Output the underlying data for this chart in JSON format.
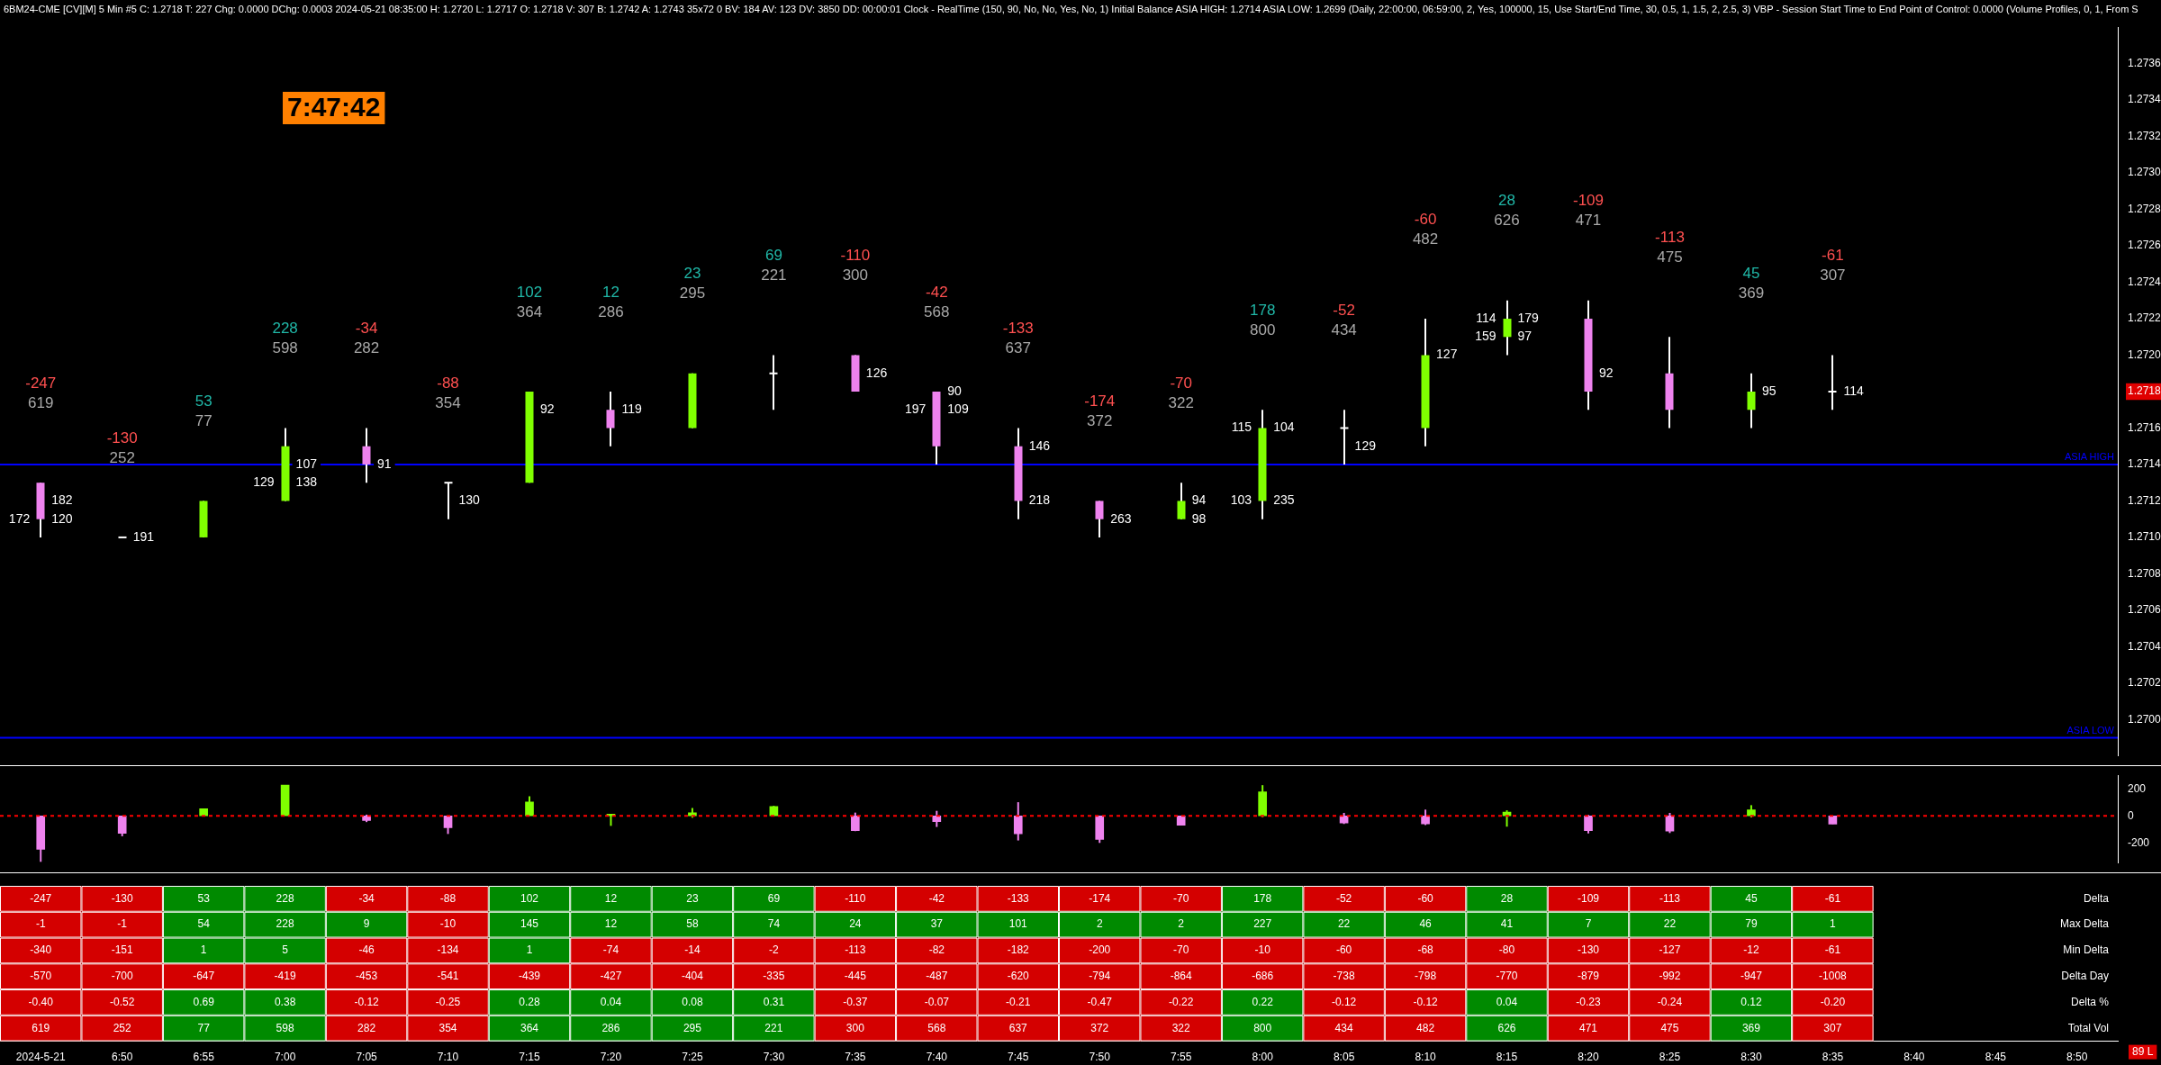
{
  "chart_data": [
    {
      "type": "candlestick",
      "title": "6BM24-CME [CV][M]  5 Min  #5 C: 1.2718 T: 227 Chg: 0.0000 DChg: 0.0003 2024-05-21 08:35:00 H: 1.2720 L: 1.2717 O: 1.2718 V: 307 B: 1.2742 A: 1.2743 35x72 0 BV: 184 AV: 123 DV: 3850 DD: 00:00:01 Clock - RealTime  (150, 90, No, No, Yes, No, 1)  Initial Balance  ASIA HIGH: 1.2714  ASIA LOW: 1.2699  (Daily, 22:00:00, 06:59:00, 2, Yes, 100000, 15, Use Start/End Time, 30, 0.5, 1, 1.5, 2, 2.5, 3)  VBP - Session Start Time to End  Point of Control: 0.0000  (Volume Profiles, 0, 1, From S",
      "categories": [
        "2024-5-21",
        "6:50",
        "6:55",
        "7:00",
        "7:05",
        "7:10",
        "7:15",
        "7:20",
        "7:25",
        "7:30",
        "7:35",
        "7:40",
        "7:45",
        "7:50",
        "7:55",
        "8:00",
        "8:05",
        "8:10",
        "8:15",
        "8:20",
        "8:25",
        "8:30",
        "8:35",
        "8:40",
        "8:45",
        "8:50"
      ],
      "ohlc": [
        [
          1.2713,
          1.2713,
          1.271,
          1.2711
        ],
        [
          1.271,
          1.271,
          1.271,
          1.271
        ],
        [
          1.271,
          1.2712,
          1.271,
          1.2712
        ],
        [
          1.2712,
          1.2716,
          1.2712,
          1.2715
        ],
        [
          1.2715,
          1.2716,
          1.2713,
          1.2714
        ],
        [
          1.2713,
          1.2713,
          1.2711,
          1.2713
        ],
        [
          1.2713,
          1.2718,
          1.2713,
          1.2718
        ],
        [
          1.2717,
          1.2718,
          1.2715,
          1.2716
        ],
        [
          1.2716,
          1.2719,
          1.2716,
          1.2719
        ],
        [
          1.2719,
          1.272,
          1.2717,
          1.2719
        ],
        [
          1.272,
          1.272,
          1.2718,
          1.2718
        ],
        [
          1.2718,
          1.2718,
          1.2714,
          1.2715
        ],
        [
          1.2715,
          1.2716,
          1.2711,
          1.2712
        ],
        [
          1.2712,
          1.2712,
          1.271,
          1.2711
        ],
        [
          1.2711,
          1.2713,
          1.2711,
          1.2712
        ],
        [
          1.2712,
          1.2717,
          1.2711,
          1.2716
        ],
        [
          1.2716,
          1.2717,
          1.2714,
          1.2716
        ],
        [
          1.2716,
          1.2722,
          1.2715,
          1.272
        ],
        [
          1.2721,
          1.2723,
          1.272,
          1.2722
        ],
        [
          1.2722,
          1.2723,
          1.2717,
          1.2718
        ],
        [
          1.2719,
          1.2721,
          1.2716,
          1.2717
        ],
        [
          1.2717,
          1.2719,
          1.2716,
          1.2718
        ],
        [
          1.2718,
          1.272,
          1.2717,
          1.2718
        ],
        null,
        null,
        null
      ],
      "ylim": [
        1.2698,
        1.2738
      ],
      "yticks": [
        {
          "value": 1.27,
          "label": "1.2700"
        },
        1.2702,
        1.2704,
        1.2706,
        1.2708,
        {
          "value": 1.271,
          "label": "1.2710"
        },
        1.2712,
        1.2714,
        1.2716,
        1.2718,
        {
          "value": 1.272,
          "label": "1.2720"
        },
        1.2722,
        1.2724,
        1.2726,
        1.2728,
        {
          "value": 1.273,
          "label": "1.2730"
        },
        1.2732,
        1.2734,
        1.2736
      ],
      "tick_labels": "y",
      "ref_lines": [
        {
          "axis": "y",
          "value": 1.2714,
          "label": "ASIA HIGH",
          "color": "#0000ff"
        },
        {
          "axis": "y",
          "value": 1.2699,
          "label": "ASIA LOW",
          "color": "#0000ff"
        }
      ],
      "annotations": [
        "7:47:42",
        "-247",
        "619",
        "-130",
        "252",
        "53",
        "77",
        "228",
        "598",
        "-34",
        "282",
        "-88",
        "354",
        "102",
        "364",
        "12",
        "286",
        "23",
        "295",
        "69",
        "221",
        "-110",
        "300",
        "-42",
        "568",
        "-133",
        "637",
        "-174",
        "372",
        "-70",
        "322",
        "178",
        "800",
        "-52",
        "434",
        "-60",
        "482",
        "28",
        "626",
        "-109",
        "471",
        "-113",
        "475",
        "45",
        "369",
        "-61",
        "307",
        {
          "text": "182",
          "x": "2024-5-21",
          "y": 1.2712
        },
        {
          "text": "172",
          "x": "2024-5-21",
          "y": 1.2711
        },
        {
          "text": "120",
          "x": "2024-5-21",
          "y": 1.2711
        },
        {
          "text": "191",
          "x": "6:50",
          "y": 1.271
        },
        {
          "text": "107",
          "x": "7:00",
          "y": 1.2714
        },
        {
          "text": "129",
          "x": "7:00",
          "y": 1.2713
        },
        {
          "text": "138",
          "x": "7:00",
          "y": 1.2713
        },
        {
          "text": "91",
          "x": "7:05",
          "y": 1.2714
        },
        {
          "text": "130",
          "x": "7:10",
          "y": 1.2712
        },
        {
          "text": "92",
          "x": "7:15",
          "y": 1.2717
        },
        {
          "text": "119",
          "x": "7:20",
          "y": 1.2717
        },
        {
          "text": "126",
          "x": "7:35",
          "y": 1.2719
        },
        {
          "text": "90",
          "x": "7:40",
          "y": 1.2718
        },
        {
          "text": "197",
          "x": "7:40",
          "y": 1.2717
        },
        {
          "text": "109",
          "x": "7:40",
          "y": 1.2717
        },
        {
          "text": "146",
          "x": "7:45",
          "y": 1.2715
        },
        {
          "text": "218",
          "x": "7:45",
          "y": 1.2712
        },
        {
          "text": "263",
          "x": "7:50",
          "y": 1.2711
        },
        {
          "text": "94",
          "x": "7:55",
          "y": 1.2712
        },
        {
          "text": "98",
          "x": "7:55",
          "y": 1.2711
        },
        {
          "text": "115",
          "x": "8:00",
          "y": 1.2716
        },
        {
          "text": "104",
          "x": "8:00",
          "y": 1.2716
        },
        {
          "text": "103",
          "x": "8:00",
          "y": 1.2712
        },
        {
          "text": "235",
          "x": "8:00",
          "y": 1.2712
        },
        {
          "text": "129",
          "x": "8:05",
          "y": 1.2715
        },
        {
          "text": "127",
          "x": "8:10",
          "y": 1.272
        },
        {
          "text": "114",
          "x": "8:15",
          "y": 1.2722
        },
        {
          "text": "179",
          "x": "8:15",
          "y": 1.2722
        },
        {
          "text": "159",
          "x": "8:15",
          "y": 1.2721
        },
        {
          "text": "97",
          "x": "8:15",
          "y": 1.2721
        },
        {
          "text": "92",
          "x": "8:20",
          "y": 1.2719
        },
        {
          "text": "95",
          "x": "8:30",
          "y": 1.2718
        },
        {
          "text": "114",
          "x": "8:35",
          "y": 1.2718
        }
      ]
    },
    {
      "type": "bar",
      "categories": [
        "2024-5-21",
        "6:50",
        "6:55",
        "7:00",
        "7:05",
        "7:10",
        "7:15",
        "7:20",
        "7:25",
        "7:30",
        "7:35",
        "7:40",
        "7:45",
        "7:50",
        "7:55",
        "8:00",
        "8:05",
        "8:10",
        "8:15",
        "8:20",
        "8:25",
        "8:30",
        "8:35",
        "8:40",
        "8:45",
        "8:50"
      ],
      "values": [
        -247,
        -130,
        53,
        228,
        -34,
        -88,
        102,
        12,
        23,
        69,
        -110,
        -42,
        -133,
        -174,
        -70,
        178,
        -52,
        -60,
        28,
        -109,
        -113,
        45,
        -61,
        null,
        null,
        null
      ],
      "errors": [
        [
          -340,
          -1
        ],
        [
          -151,
          -1
        ],
        [
          1,
          54
        ],
        [
          5,
          228
        ],
        [
          -46,
          9
        ],
        [
          -134,
          -10
        ],
        [
          1,
          145
        ],
        [
          -74,
          12
        ],
        [
          -14,
          58
        ],
        [
          -2,
          74
        ],
        [
          -113,
          24
        ],
        [
          -82,
          37
        ],
        [
          -182,
          101
        ],
        [
          -200,
          2
        ],
        [
          -70,
          2
        ],
        [
          -10,
          227
        ],
        [
          -60,
          22
        ],
        [
          -68,
          46
        ],
        [
          -80,
          41
        ],
        [
          -130,
          7
        ],
        [
          -127,
          22
        ],
        [
          -12,
          79
        ],
        [
          -61,
          1
        ],
        null,
        null,
        null
      ],
      "colors": [
        "#ee82ee",
        "#ee82ee",
        "#80ff00",
        "#80ff00",
        "#ee82ee",
        "#ee82ee",
        "#80ff00",
        "#80ff00",
        "#80ff00",
        "#80ff00",
        "#ee82ee",
        "#ee82ee",
        "#ee82ee",
        "#ee82ee",
        "#ee82ee",
        "#80ff00",
        "#ee82ee",
        "#ee82ee",
        "#80ff00",
        "#ee82ee",
        "#ee82ee",
        "#80ff00",
        "#ee82ee",
        "#80ff00",
        "#80ff00",
        "#80ff00"
      ],
      "ylim": [
        -350,
        300
      ],
      "yticks": [
        -200,
        0,
        200
      ],
      "tick_labels": "y",
      "ref_lines": [
        {
          "axis": "y",
          "value": 0,
          "color": "#ff0000",
          "line_style": "dashed"
        }
      ]
    },
    {
      "type": "heatmap",
      "categories": [
        "2024-5-21",
        "6:50",
        "6:55",
        "7:00",
        "7:05",
        "7:10",
        "7:15",
        "7:20",
        "7:25",
        "7:30",
        "7:35",
        "7:40",
        "7:45",
        "7:50",
        "7:55",
        "8:00",
        "8:05",
        "8:10",
        "8:15",
        "8:20",
        "8:25",
        "8:30",
        "8:35",
        "8:40",
        "8:45",
        "8:50"
      ],
      "y_categories": [
        "Delta",
        "Max Delta",
        "Min Delta",
        "Delta Day",
        "Delta %",
        "Total Vol"
      ],
      "cells": [
        [
          -247,
          -130,
          53,
          228,
          -34,
          -88,
          102,
          12,
          23,
          69,
          -110,
          -42,
          -133,
          -174,
          -70,
          178,
          -52,
          -60,
          28,
          -109,
          -113,
          45,
          -61,
          null,
          null,
          null
        ],
        [
          -1,
          -1,
          54,
          228,
          9,
          -10,
          145,
          12,
          58,
          74,
          24,
          37,
          101,
          2,
          2,
          227,
          22,
          46,
          41,
          7,
          22,
          79,
          1,
          null,
          null,
          null
        ],
        [
          -340,
          -151,
          1,
          5,
          -46,
          -134,
          1,
          -74,
          -14,
          -2,
          -113,
          -82,
          -182,
          -200,
          -70,
          -10,
          -60,
          -68,
          -80,
          -130,
          -127,
          -12,
          -61,
          null,
          null,
          null
        ],
        [
          -570,
          -700,
          -647,
          -419,
          -453,
          -541,
          -439,
          -427,
          -404,
          -335,
          -445,
          -487,
          -620,
          -794,
          -864,
          -686,
          -738,
          -798,
          -770,
          -879,
          -992,
          -947,
          -1008,
          null,
          null,
          null
        ],
        [
          -0.4,
          -0.52,
          0.69,
          0.38,
          -0.12,
          -0.25,
          0.28,
          0.04,
          0.08,
          0.31,
          -0.37,
          -0.07,
          -0.21,
          -0.47,
          -0.22,
          0.22,
          -0.12,
          -0.12,
          0.04,
          -0.23,
          -0.24,
          0.12,
          -0.2,
          null,
          null,
          null
        ],
        [
          619,
          252,
          77,
          598,
          282,
          354,
          364,
          286,
          295,
          221,
          300,
          568,
          637,
          372,
          322,
          800,
          434,
          482,
          626,
          471,
          475,
          369,
          307,
          null,
          null,
          null
        ]
      ],
      "cell_labels": [
        [
          "-247",
          "-130",
          "53",
          "228",
          "-34",
          "-88",
          "102",
          "12",
          "23",
          "69",
          "-110",
          "-42",
          "-133",
          "-174",
          "-70",
          "178",
          "-52",
          "-60",
          "28",
          "-109",
          "-113",
          "45",
          "-61",
          null,
          null,
          null
        ],
        [
          "-1",
          "-1",
          "54",
          "228",
          "9",
          "-10",
          "145",
          "12",
          "58",
          "74",
          "24",
          "37",
          "101",
          "2",
          "2",
          "227",
          "22",
          "46",
          "41",
          "7",
          "22",
          "79",
          "1",
          null,
          null,
          null
        ],
        [
          "-340",
          "-151",
          "1",
          "5",
          "-46",
          "-134",
          "1",
          "-74",
          "-14",
          "-2",
          "-113",
          "-82",
          "-182",
          "-200",
          "-70",
          "-10",
          "-60",
          "-68",
          "-80",
          "-130",
          "-127",
          "-12",
          "-61",
          null,
          null,
          null
        ],
        [
          "-570",
          "-700",
          "-647",
          "-419",
          "-453",
          "-541",
          "-439",
          "-427",
          "-404",
          "-335",
          "-445",
          "-487",
          "-620",
          "-794",
          "-864",
          "-686",
          "-738",
          "-798",
          "-770",
          "-879",
          "-992",
          "-947",
          "-1008",
          null,
          null,
          null
        ],
        [
          "-0.40",
          "-0.52",
          "0.69",
          "0.38",
          "-0.12",
          "-0.25",
          "0.28",
          "0.04",
          "0.08",
          "0.31",
          "-0.37",
          "-0.07",
          "-0.21",
          "-0.47",
          "-0.22",
          "0.22",
          "-0.12",
          "-0.12",
          "0.04",
          "-0.23",
          "-0.24",
          "0.12",
          "-0.20",
          null,
          null,
          null
        ],
        [
          "619",
          "252",
          "77",
          "598",
          "282",
          "354",
          "364",
          "286",
          "295",
          "221",
          "300",
          "568",
          "637",
          "372",
          "322",
          "800",
          "434",
          "482",
          "626",
          "471",
          "475",
          "369",
          "307",
          null,
          null,
          null
        ]
      ],
      "annotations": [
        "89 L"
      ]
    }
  ]
}
